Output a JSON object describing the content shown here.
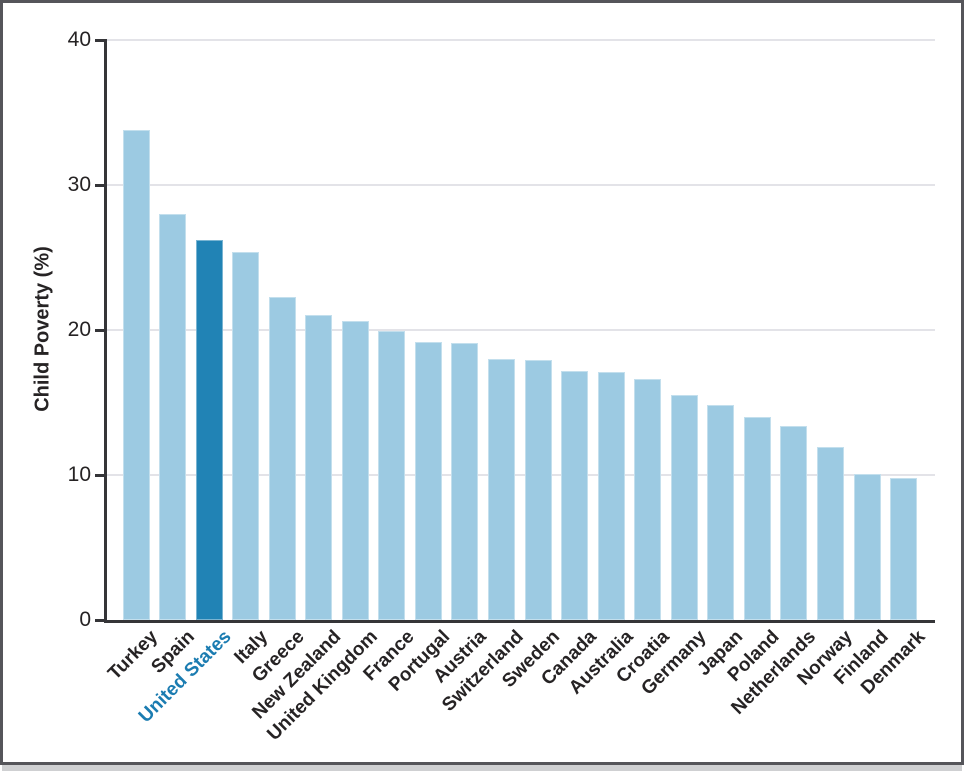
{
  "chart_data": {
    "type": "bar",
    "title": "",
    "xlabel": "",
    "ylabel": "Child Poverty (%)",
    "ylim": [
      0,
      40
    ],
    "yticks": [
      0,
      10,
      20,
      30,
      40
    ],
    "grid": true,
    "legend": false,
    "categories": [
      "Turkey",
      "Spain",
      "United States",
      "Italy",
      "Greece",
      "New Zealand",
      "United Kingdom",
      "France",
      "Portugal",
      "Austria",
      "Switzerland",
      "Sweden",
      "Canada",
      "Australia",
      "Croatia",
      "Germany",
      "Japan",
      "Poland",
      "Netherlands",
      "Norway",
      "Finland",
      "Denmark"
    ],
    "values": [
      33.8,
      28.0,
      26.2,
      25.4,
      22.3,
      21.0,
      20.6,
      19.9,
      19.2,
      19.1,
      18.0,
      17.9,
      17.2,
      17.1,
      16.6,
      15.5,
      14.8,
      14.0,
      13.4,
      11.9,
      10.1,
      9.8
    ],
    "highlight_category": "United States",
    "highlight_index": 2,
    "colors": {
      "bar": "#9ccae2",
      "highlight_bar": "#2183b5",
      "highlight_label": "#1b7cb1",
      "text": "#262324",
      "grid": "#e3e3e8",
      "axis": "#353538",
      "frame": "#55555a"
    }
  }
}
